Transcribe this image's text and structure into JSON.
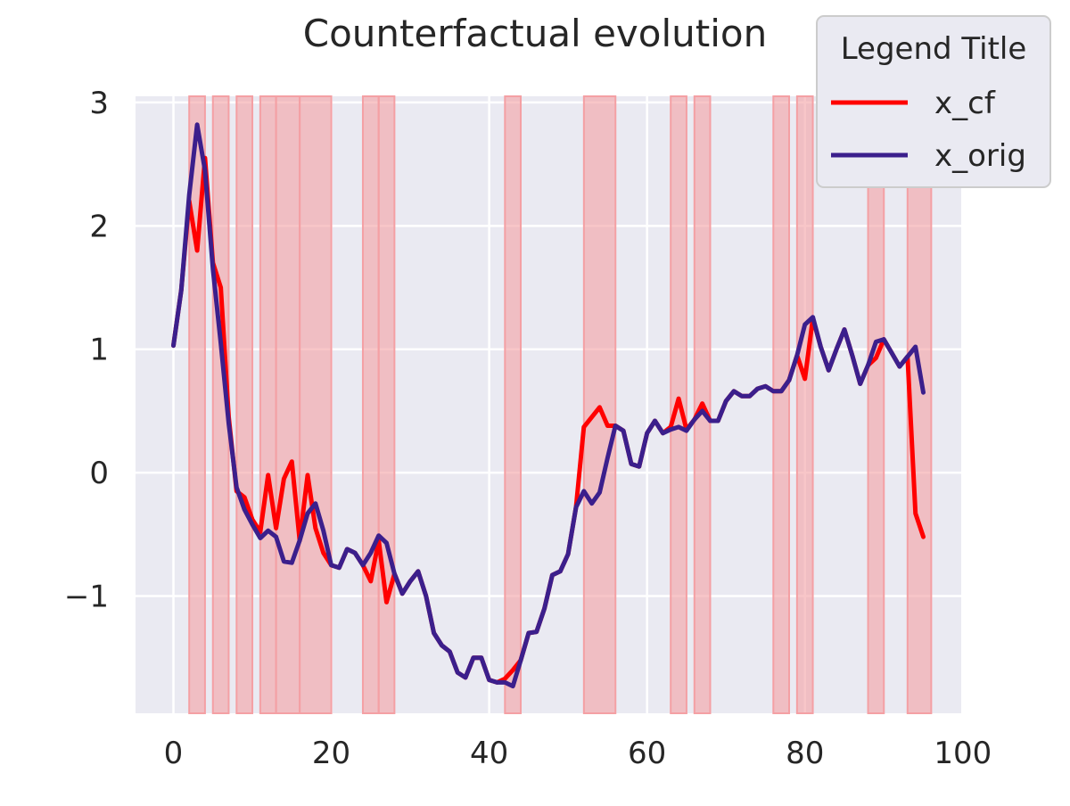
{
  "chart_data": {
    "type": "line",
    "title": "Counterfactual evolution",
    "xlabel": "",
    "ylabel": "",
    "xlim": [
      -4.8,
      99.8
    ],
    "ylim": [
      -1.95,
      3.05
    ],
    "xticks": [
      0,
      20,
      40,
      60,
      80,
      100
    ],
    "yticks": [
      -1,
      0,
      1,
      2,
      3
    ],
    "xtick_labels": [
      "0",
      "20",
      "40",
      "60",
      "80",
      "100"
    ],
    "ytick_labels": [
      "−1",
      "0",
      "1",
      "2",
      "3"
    ],
    "grid": true,
    "legend": {
      "title": "Legend Title",
      "position": "top-right",
      "entries": [
        "x_cf",
        "x_orig"
      ]
    },
    "colors": {
      "x_cf": "#ff0000",
      "x_orig": "#3b1f8c",
      "highlight": "#f4a0a4",
      "background": "#eaeaf2"
    },
    "highlight_spans": [
      [
        2,
        4
      ],
      [
        5,
        7
      ],
      [
        8,
        10
      ],
      [
        11,
        13
      ],
      [
        13,
        16
      ],
      [
        16,
        20
      ],
      [
        24,
        26
      ],
      [
        26,
        28
      ],
      [
        42,
        44
      ],
      [
        52,
        56
      ],
      [
        63,
        65
      ],
      [
        66,
        68
      ],
      [
        76,
        78
      ],
      [
        79,
        81
      ],
      [
        88,
        90
      ],
      [
        93,
        96
      ]
    ],
    "series": [
      {
        "name": "x_cf",
        "x": [
          0,
          1,
          2,
          3,
          4,
          5,
          6,
          7,
          8,
          9,
          10,
          11,
          12,
          13,
          14,
          15,
          16,
          17,
          18,
          19,
          20,
          21,
          22,
          23,
          24,
          25,
          26,
          27,
          28,
          29,
          30,
          31,
          32,
          33,
          34,
          35,
          36,
          37,
          38,
          39,
          40,
          41,
          42,
          43,
          44,
          45,
          46,
          47,
          48,
          49,
          50,
          51,
          52,
          53,
          54,
          55,
          56,
          57,
          58,
          59,
          60,
          61,
          62,
          63,
          64,
          65,
          66,
          67,
          68,
          69,
          70,
          71,
          72,
          73,
          74,
          75,
          76,
          77,
          78,
          79,
          80,
          81,
          82,
          83,
          84,
          85,
          86,
          87,
          88,
          89,
          90,
          91,
          92,
          93,
          94,
          95
        ],
        "values": [
          1.03,
          1.48,
          2.2,
          1.8,
          2.55,
          1.7,
          1.5,
          0.45,
          -0.15,
          -0.2,
          -0.38,
          -0.48,
          -0.02,
          -0.45,
          -0.05,
          0.09,
          -0.55,
          -0.02,
          -0.45,
          -0.65,
          -0.75,
          -0.77,
          -0.62,
          -0.65,
          -0.75,
          -0.88,
          -0.55,
          -1.05,
          -0.82,
          -0.98,
          -0.88,
          -0.8,
          -1.0,
          -1.3,
          -1.4,
          -1.45,
          -1.62,
          -1.66,
          -1.5,
          -1.5,
          -1.68,
          -1.7,
          -1.67,
          -1.6,
          -1.52,
          -1.3,
          -1.29,
          -1.1,
          -0.83,
          -0.8,
          -0.66,
          -0.28,
          0.37,
          0.45,
          0.53,
          0.38,
          0.38,
          0.34,
          0.07,
          0.05,
          0.32,
          0.42,
          0.32,
          0.37,
          0.6,
          0.35,
          0.43,
          0.56,
          0.42,
          0.42,
          0.58,
          0.66,
          0.62,
          0.62,
          0.68,
          0.7,
          0.66,
          0.66,
          0.75,
          0.95,
          0.76,
          1.25,
          1.02,
          0.83,
          1.0,
          1.16,
          0.95,
          0.72,
          0.87,
          0.93,
          1.08,
          0.97,
          0.86,
          0.94,
          -0.33,
          -0.52
        ]
      },
      {
        "name": "x_orig",
        "x": [
          0,
          1,
          2,
          3,
          4,
          5,
          6,
          7,
          8,
          9,
          10,
          11,
          12,
          13,
          14,
          15,
          16,
          17,
          18,
          19,
          20,
          21,
          22,
          23,
          24,
          25,
          26,
          27,
          28,
          29,
          30,
          31,
          32,
          33,
          34,
          35,
          36,
          37,
          38,
          39,
          40,
          41,
          42,
          43,
          44,
          45,
          46,
          47,
          48,
          49,
          50,
          51,
          52,
          53,
          54,
          55,
          56,
          57,
          58,
          59,
          60,
          61,
          62,
          63,
          64,
          65,
          66,
          67,
          68,
          69,
          70,
          71,
          72,
          73,
          74,
          75,
          76,
          77,
          78,
          79,
          80,
          81,
          82,
          83,
          84,
          85,
          86,
          87,
          88,
          89,
          90,
          91,
          92,
          93,
          94,
          95
        ],
        "values": [
          1.03,
          1.48,
          2.25,
          2.82,
          2.45,
          1.65,
          1.05,
          0.4,
          -0.12,
          -0.3,
          -0.42,
          -0.53,
          -0.47,
          -0.52,
          -0.72,
          -0.73,
          -0.55,
          -0.33,
          -0.25,
          -0.47,
          -0.75,
          -0.77,
          -0.62,
          -0.65,
          -0.75,
          -0.65,
          -0.51,
          -0.57,
          -0.82,
          -0.98,
          -0.88,
          -0.8,
          -1.0,
          -1.3,
          -1.4,
          -1.45,
          -1.62,
          -1.66,
          -1.5,
          -1.5,
          -1.68,
          -1.7,
          -1.7,
          -1.73,
          -1.52,
          -1.3,
          -1.29,
          -1.1,
          -0.83,
          -0.8,
          -0.66,
          -0.28,
          -0.15,
          -0.25,
          -0.16,
          0.12,
          0.38,
          0.34,
          0.07,
          0.05,
          0.32,
          0.42,
          0.32,
          0.35,
          0.37,
          0.34,
          0.43,
          0.5,
          0.42,
          0.42,
          0.58,
          0.66,
          0.62,
          0.62,
          0.68,
          0.7,
          0.66,
          0.66,
          0.75,
          0.95,
          1.2,
          1.26,
          1.02,
          0.83,
          1.0,
          1.16,
          0.95,
          0.72,
          0.87,
          1.06,
          1.08,
          0.97,
          0.86,
          0.94,
          1.02,
          0.65
        ]
      }
    ]
  }
}
